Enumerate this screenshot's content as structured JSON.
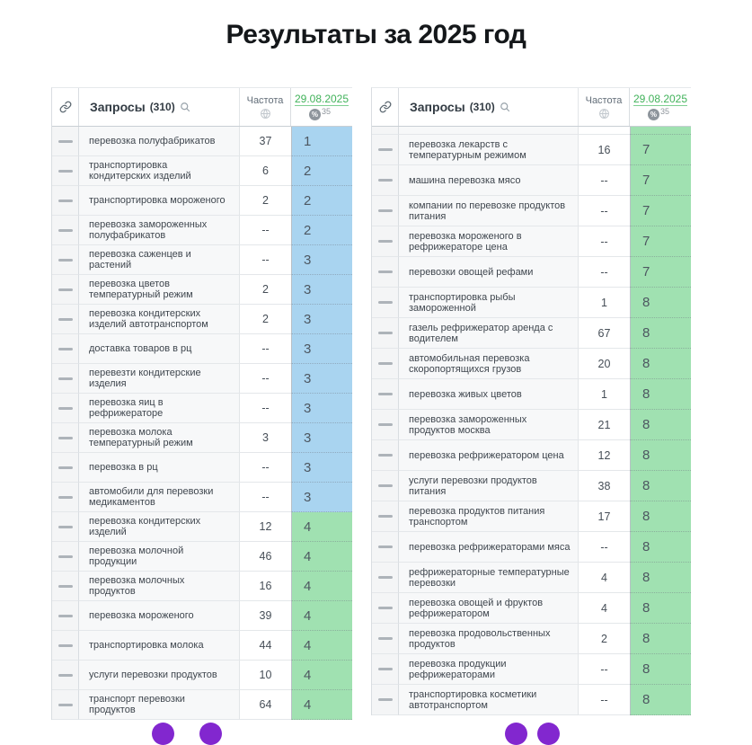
{
  "page": {
    "title": "Результаты за 2025 год"
  },
  "colors": {
    "position_blue": "#a9d4f0",
    "position_green": "#a0e1b1",
    "date_link_green": "#41b25a",
    "fab_purple": "#8227cf"
  },
  "icons": {
    "link": "link-icon",
    "search": "search-icon",
    "globe": "globe-icon",
    "percent_badge": "%"
  },
  "tables": [
    {
      "header": {
        "queries_label": "Запросы",
        "queries_count": "(310)",
        "frequency_label": "Частота",
        "date_label": "29.08.2025",
        "date_badge_pct": "%",
        "date_badge_sup": "35"
      },
      "rows": [
        {
          "query": "перевозка полуфабрикатов",
          "freq": "37",
          "pos": "1",
          "color": "blue"
        },
        {
          "query": "транспортировка кондитерских изделий",
          "freq": "6",
          "pos": "2",
          "color": "blue"
        },
        {
          "query": "транспортировка мороженого",
          "freq": "2",
          "pos": "2",
          "color": "blue"
        },
        {
          "query": "перевозка замороженных полуфабрикатов",
          "freq": "--",
          "pos": "2",
          "color": "blue"
        },
        {
          "query": "перевозка саженцев и растений",
          "freq": "--",
          "pos": "3",
          "color": "blue"
        },
        {
          "query": "перевозка цветов температурный режим",
          "freq": "2",
          "pos": "3",
          "color": "blue"
        },
        {
          "query": "перевозка кондитерских изделий автотранспортом",
          "freq": "2",
          "pos": "3",
          "color": "blue"
        },
        {
          "query": "доставка товаров в рц",
          "freq": "--",
          "pos": "3",
          "color": "blue"
        },
        {
          "query": "перевезти кондитерские изделия",
          "freq": "--",
          "pos": "3",
          "color": "blue"
        },
        {
          "query": "перевозка яиц в рефрижераторе",
          "freq": "--",
          "pos": "3",
          "color": "blue"
        },
        {
          "query": "перевозка молока температурный режим",
          "freq": "3",
          "pos": "3",
          "color": "blue"
        },
        {
          "query": "перевозка в рц",
          "freq": "--",
          "pos": "3",
          "color": "blue"
        },
        {
          "query": "автомобили для перевозки медикаментов",
          "freq": "--",
          "pos": "3",
          "color": "blue"
        },
        {
          "query": "перевозка кондитерских изделий",
          "freq": "12",
          "pos": "4",
          "color": "green"
        },
        {
          "query": "перевозка молочной продукции",
          "freq": "46",
          "pos": "4",
          "color": "green"
        },
        {
          "query": "перевозка молочных продуктов",
          "freq": "16",
          "pos": "4",
          "color": "green"
        },
        {
          "query": "перевозка мороженого",
          "freq": "39",
          "pos": "4",
          "color": "green"
        },
        {
          "query": "транспортировка молока",
          "freq": "44",
          "pos": "4",
          "color": "green"
        },
        {
          "query": "услуги перевозки продуктов",
          "freq": "10",
          "pos": "4",
          "color": "green"
        },
        {
          "query": "транспорт перевозки продуктов",
          "freq": "64",
          "pos": "4",
          "color": "green"
        }
      ]
    },
    {
      "header": {
        "queries_label": "Запросы",
        "queries_count": "(310)",
        "frequency_label": "Частота",
        "date_label": "29.08.2025",
        "date_badge_pct": "%",
        "date_badge_sup": "35"
      },
      "rows": [
        {
          "query": "",
          "freq": "",
          "pos": "",
          "color": "green",
          "partial": true
        },
        {
          "query": "перевозка лекарств с температурным режимом",
          "freq": "16",
          "pos": "7",
          "color": "green"
        },
        {
          "query": "машина перевозка мясо",
          "freq": "--",
          "pos": "7",
          "color": "green"
        },
        {
          "query": "компании по перевозке продуктов питания",
          "freq": "--",
          "pos": "7",
          "color": "green"
        },
        {
          "query": "перевозка мороженого в рефрижераторе цена",
          "freq": "--",
          "pos": "7",
          "color": "green"
        },
        {
          "query": "перевозки овощей рефами",
          "freq": "--",
          "pos": "7",
          "color": "green"
        },
        {
          "query": "транспортировка рыбы замороженной",
          "freq": "1",
          "pos": "8",
          "color": "green"
        },
        {
          "query": "газель рефрижератор аренда с водителем",
          "freq": "67",
          "pos": "8",
          "color": "green"
        },
        {
          "query": "автомобильная перевозка скоропортящихся грузов",
          "freq": "20",
          "pos": "8",
          "color": "green"
        },
        {
          "query": "перевозка живых цветов",
          "freq": "1",
          "pos": "8",
          "color": "green"
        },
        {
          "query": "перевозка замороженных продуктов москва",
          "freq": "21",
          "pos": "8",
          "color": "green"
        },
        {
          "query": "перевозка рефрижератором цена",
          "freq": "12",
          "pos": "8",
          "color": "green"
        },
        {
          "query": "услуги перевозки продуктов питания",
          "freq": "38",
          "pos": "8",
          "color": "green"
        },
        {
          "query": "перевозка продуктов питания транспортом",
          "freq": "17",
          "pos": "8",
          "color": "green"
        },
        {
          "query": "перевозка рефрижераторами мяса",
          "freq": "--",
          "pos": "8",
          "color": "green"
        },
        {
          "query": "рефрижераторные температурные перевозки",
          "freq": "4",
          "pos": "8",
          "color": "green"
        },
        {
          "query": "перевозка овощей и фруктов рефрижератором",
          "freq": "4",
          "pos": "8",
          "color": "green"
        },
        {
          "query": "перевозка продовольственных продуктов",
          "freq": "2",
          "pos": "8",
          "color": "green"
        },
        {
          "query": "перевозка продукции рефрижераторами",
          "freq": "--",
          "pos": "8",
          "color": "green"
        },
        {
          "query": "транспортировка косметики автотранспортом",
          "freq": "--",
          "pos": "8",
          "color": "green"
        }
      ]
    }
  ]
}
